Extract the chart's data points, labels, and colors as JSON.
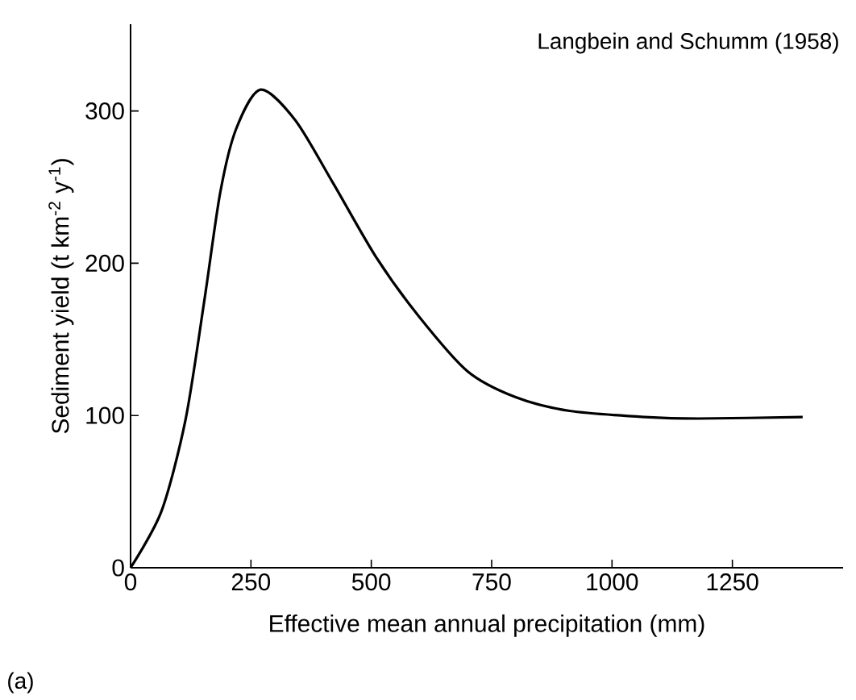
{
  "chart_data": {
    "type": "line",
    "xlabel": "Effective mean annual precipitation (mm)",
    "ylabel": "Sediment yield (t km$^{-2}$ y$^{-1}$)",
    "annotations": [
      "Langbein and Schumm (1958)",
      "(a)"
    ],
    "xlim": [
      0,
      1480
    ],
    "ylim": [
      0,
      357
    ],
    "xticks": [
      0,
      250,
      500,
      750,
      1000,
      1250
    ],
    "yticks": [
      0,
      100,
      200,
      300
    ],
    "marker": "none",
    "line_style": "solid",
    "series": [
      {
        "color": "#000000",
        "x": [
          0,
          64,
          114,
          153,
          186,
          219,
          270,
          342,
          420,
          510,
          599,
          700,
          800,
          912,
          1068,
          1180,
          1396
        ],
        "values": [
          0,
          37,
          97,
          175,
          246,
          288,
          314,
          294,
          253,
          204,
          165,
          129,
          112,
          103,
          99,
          98,
          99
        ]
      }
    ]
  }
}
